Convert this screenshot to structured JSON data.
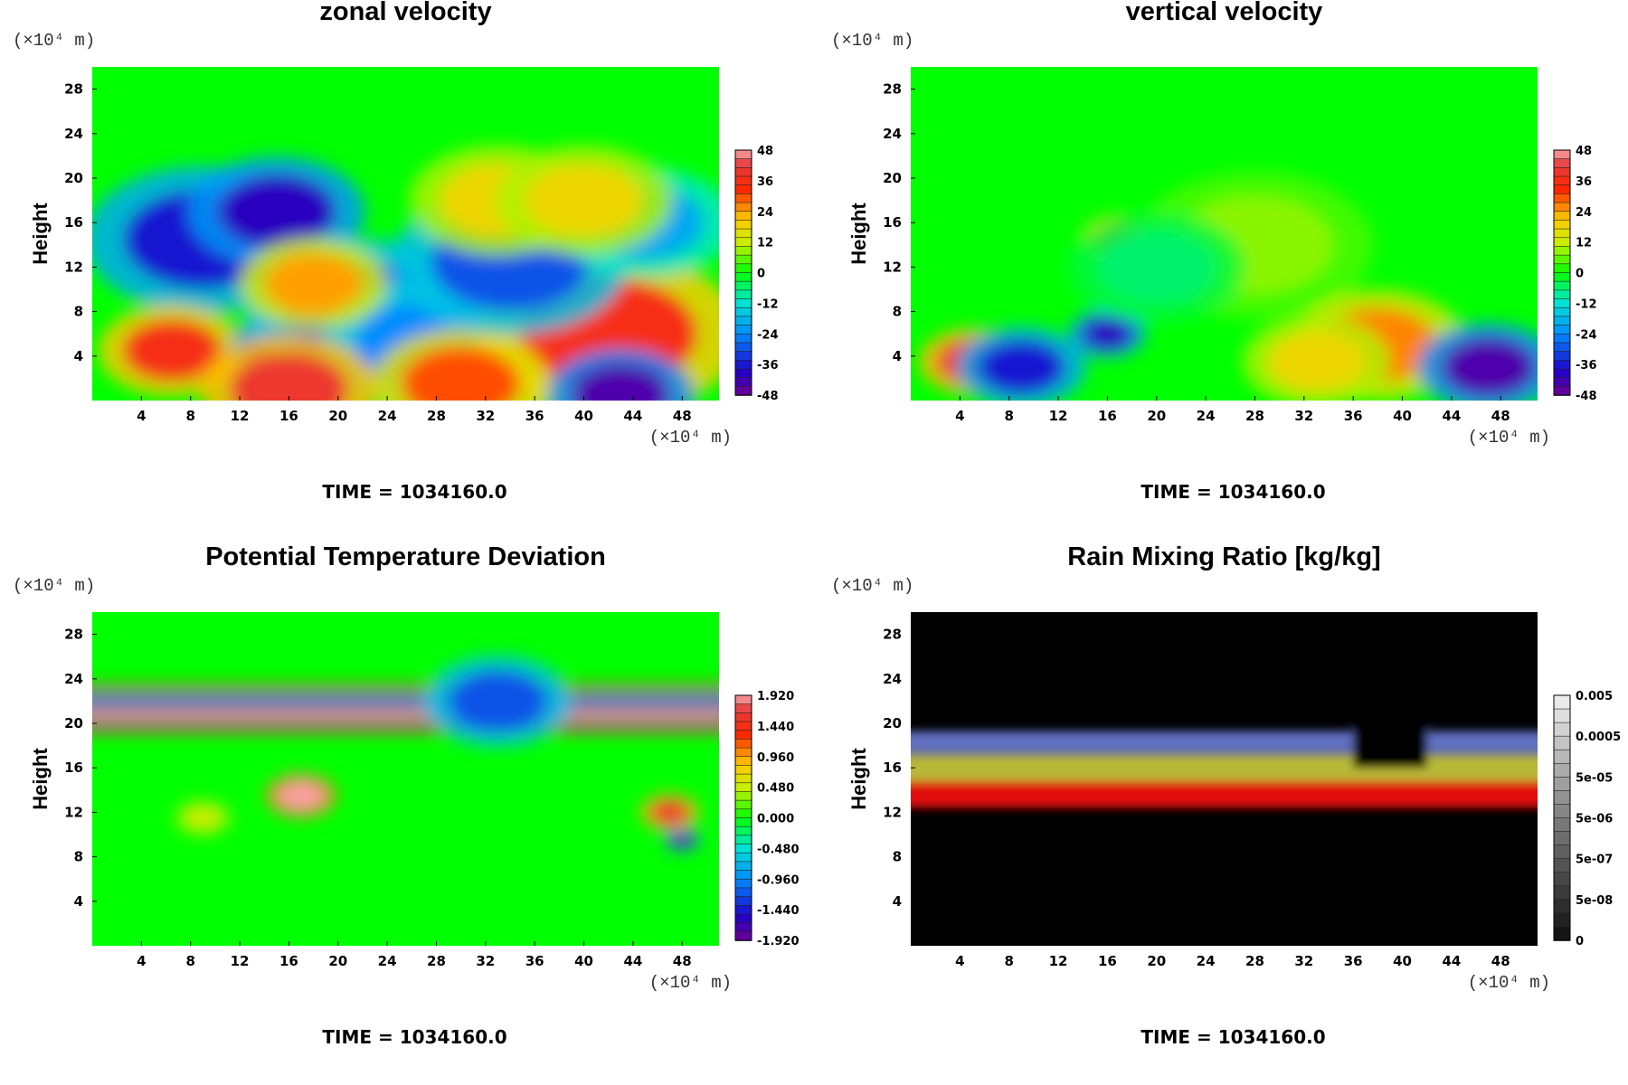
{
  "chart_data": [
    {
      "type": "heatmap",
      "title": "zonal velocity",
      "ylabel": "Height",
      "xlabel": "",
      "x_unit_label": "(×10⁴ m)",
      "y_unit_label": "(×10⁴ m)",
      "x_ticks": [
        "4",
        "8",
        "12",
        "16",
        "20",
        "24",
        "28",
        "32",
        "36",
        "40",
        "44",
        "48"
      ],
      "y_ticks": [
        "4",
        "8",
        "12",
        "16",
        "20",
        "24",
        "28"
      ],
      "xlim": [
        0,
        51
      ],
      "ylim": [
        0,
        30
      ],
      "colorbar": {
        "labels": [
          "48",
          "36",
          "24",
          "12",
          "0",
          "-12",
          "-24",
          "-36",
          "-48"
        ],
        "range": [
          -48,
          48
        ],
        "palette": "rainbow"
      },
      "time_label": "TIME = 1034160.0",
      "features": [
        {
          "x": 9,
          "y": 14.5,
          "r": 4,
          "value": -36
        },
        {
          "x": 15,
          "y": 17,
          "r": 3,
          "value": -40
        },
        {
          "x": 6.5,
          "y": 4.5,
          "r": 2.5,
          "value": 36
        },
        {
          "x": 16,
          "y": 4.5,
          "r": 2,
          "value": -44
        },
        {
          "x": 22,
          "y": 8,
          "r": 4,
          "value": -30
        },
        {
          "x": 27,
          "y": 5,
          "r": 3.5,
          "value": -24
        },
        {
          "x": 42,
          "y": 6,
          "r": 4.5,
          "value": 36
        },
        {
          "x": 43,
          "y": 0.5,
          "r": 2.5,
          "value": -44
        },
        {
          "x": 16,
          "y": 1,
          "r": 3,
          "value": 40
        },
        {
          "x": 30,
          "y": 1.5,
          "r": 3,
          "value": 30
        },
        {
          "x": 34,
          "y": 12.5,
          "r": 4,
          "value": -30
        },
        {
          "x": 18,
          "y": 10.5,
          "r": 2.5,
          "value": 24
        },
        {
          "x": 45,
          "y": 16,
          "r": 3,
          "value": -20
        },
        {
          "x": 33,
          "y": 18,
          "r": 3,
          "value": 18
        },
        {
          "x": 40,
          "y": 18,
          "r": 3,
          "value": 18
        }
      ]
    },
    {
      "type": "heatmap",
      "title": "vertical velocity",
      "ylabel": "Height",
      "xlabel": "",
      "x_unit_label": "(×10⁴ m)",
      "y_unit_label": "(×10⁴ m)",
      "x_ticks": [
        "4",
        "8",
        "12",
        "16",
        "20",
        "24",
        "28",
        "32",
        "36",
        "40",
        "44",
        "48"
      ],
      "y_ticks": [
        "4",
        "8",
        "12",
        "16",
        "20",
        "24",
        "28"
      ],
      "xlim": [
        0,
        51
      ],
      "ylim": [
        0,
        30
      ],
      "colorbar": {
        "labels": [
          "48",
          "36",
          "24",
          "12",
          "0",
          "-12",
          "-24",
          "-36",
          "-48"
        ],
        "range": [
          -48,
          48
        ],
        "palette": "rainbow"
      },
      "time_label": "TIME = 1034160.0",
      "features": [
        {
          "x": 5,
          "y": 3.5,
          "r": 1.8,
          "value": 40
        },
        {
          "x": 9,
          "y": 3,
          "r": 2.2,
          "value": -36
        },
        {
          "x": 16,
          "y": 6,
          "r": 1.3,
          "value": -40
        },
        {
          "x": 17,
          "y": 14.5,
          "r": 1.3,
          "value": 30
        },
        {
          "x": 38,
          "y": 5,
          "r": 3,
          "value": 26
        },
        {
          "x": 47,
          "y": 3,
          "r": 2.4,
          "value": -44
        },
        {
          "x": 33,
          "y": 3.5,
          "r": 2.5,
          "value": 18
        },
        {
          "x": 28,
          "y": 14,
          "r": 4,
          "value": 8
        },
        {
          "x": 20,
          "y": 12,
          "r": 3,
          "value": -6
        }
      ]
    },
    {
      "type": "heatmap",
      "title": "Potential Temperature Deviation",
      "ylabel": "Height",
      "xlabel": "",
      "x_unit_label": "(×10⁴ m)",
      "y_unit_label": "(×10⁴ m)",
      "x_ticks": [
        "4",
        "8",
        "12",
        "16",
        "20",
        "24",
        "28",
        "32",
        "36",
        "40",
        "44",
        "48"
      ],
      "y_ticks": [
        "4",
        "8",
        "12",
        "16",
        "20",
        "24",
        "28"
      ],
      "xlim": [
        0,
        51
      ],
      "ylim": [
        0,
        30
      ],
      "colorbar": {
        "labels": [
          "1.920",
          "1.440",
          "0.960",
          "0.480",
          "0.000",
          "-0.480",
          "-0.960",
          "-1.440",
          "-1.920"
        ],
        "range": [
          -1.92,
          1.92
        ],
        "palette": "rainbow"
      },
      "time_label": "TIME = 1034160.0",
      "bands": [
        {
          "y": 23.2,
          "h": 0.5,
          "value": 1.4
        },
        {
          "y": 22.3,
          "h": 0.7,
          "value": -1.0
        },
        {
          "y": 21.5,
          "h": 0.7,
          "value": -1.92
        },
        {
          "y": 20.8,
          "h": 0.8,
          "value": 1.92
        },
        {
          "y": 19.9,
          "h": 0.6,
          "value": -1.92
        },
        {
          "y": 19.4,
          "h": 0.4,
          "value": 1.2
        }
      ],
      "features": [
        {
          "x": 17,
          "y": 13.5,
          "r": 1.2,
          "value": 1.9
        },
        {
          "x": 47,
          "y": 12,
          "r": 1,
          "value": 1.6
        },
        {
          "x": 48,
          "y": 9.5,
          "r": 0.6,
          "value": -1.8
        },
        {
          "x": 33,
          "y": 22,
          "r": 2.5,
          "value": -1.2
        },
        {
          "x": 9,
          "y": 11.5,
          "r": 1,
          "value": 0.5
        }
      ]
    },
    {
      "type": "heatmap",
      "title": "Rain Mixing Ratio [kg/kg]",
      "ylabel": "Height",
      "xlabel": "",
      "x_unit_label": "(×10⁴ m)",
      "y_unit_label": "(×10⁴ m)",
      "x_ticks": [
        "4",
        "8",
        "12",
        "16",
        "20",
        "24",
        "28",
        "32",
        "36",
        "40",
        "44",
        "48"
      ],
      "y_ticks": [
        "4",
        "8",
        "12",
        "16",
        "20",
        "24",
        "28"
      ],
      "xlim": [
        0,
        51
      ],
      "ylim": [
        0,
        30
      ],
      "colorbar": {
        "labels": [
          "0.005",
          "0.0005",
          "5e-05",
          "5e-06",
          "5e-07",
          "5e-08",
          "0"
        ],
        "palette": "grayscale"
      },
      "time_label": "TIME = 1034160.0",
      "bands": [
        {
          "y": 18.3,
          "h": 2.0,
          "color": "#6070c0"
        },
        {
          "y": 16.0,
          "h": 2.4,
          "color": "#b8b838"
        },
        {
          "y": 13.6,
          "h": 2.4,
          "color": "#e01010"
        }
      ],
      "gaps": [
        {
          "x0": 36,
          "x1": 42,
          "top": true
        }
      ]
    }
  ]
}
